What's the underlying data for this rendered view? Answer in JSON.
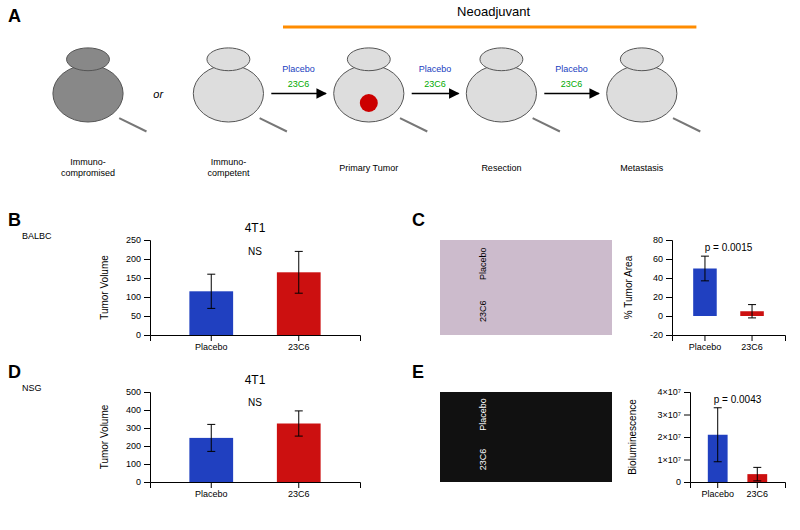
{
  "chart_data": [
    {
      "type": "diagram",
      "label": "A",
      "title": "Neoadjuvant",
      "stages": [
        "Immuno-\ncompromised",
        "Immuno-\ncompetent",
        "Primary Tumor",
        "Resection",
        "Metastasis"
      ],
      "annotations": [
        "or"
      ],
      "arrow_labels": [
        "Placebo",
        "23C6"
      ],
      "colors": [
        "#2040C0",
        "#00AA00"
      ]
    },
    {
      "type": "bar",
      "label": "B",
      "title": "4T1",
      "subtitle": "BALBC",
      "categories": [
        "Placebo",
        "23C6"
      ],
      "values": [
        115,
        165
      ],
      "errors": [
        45,
        55
      ],
      "colors": [
        "#2040C0",
        "#CC1010"
      ],
      "ylabel": "Tumor Volume",
      "ylim": [
        0,
        250
      ],
      "yticks": [
        0,
        50,
        100,
        150,
        200,
        250
      ],
      "annotations": [
        "NS"
      ]
    },
    {
      "type": "bar",
      "label": "C",
      "categories": [
        "Placebo",
        "23C6"
      ],
      "values": [
        50,
        5
      ],
      "errors": [
        13,
        7
      ],
      "colors": [
        "#2040C0",
        "#CC1010"
      ],
      "ylabel": "% Tumor Area",
      "ylim": [
        -20,
        80
      ],
      "yticks": [
        -20,
        0,
        20,
        40,
        60,
        80
      ],
      "annotations": [
        "p = 0.0015"
      ],
      "image_labels": [
        "Placebo",
        "23C6"
      ]
    },
    {
      "type": "bar",
      "label": "D",
      "title": "4T1",
      "subtitle": "NSG",
      "categories": [
        "Placebo",
        "23C6"
      ],
      "values": [
        245,
        325
      ],
      "errors": [
        75,
        70
      ],
      "colors": [
        "#2040C0",
        "#CC1010"
      ],
      "ylabel": "Tumor Volume",
      "ylim": [
        0,
        500
      ],
      "yticks": [
        0,
        100,
        200,
        300,
        400,
        500
      ],
      "annotations": [
        "NS"
      ]
    },
    {
      "type": "bar",
      "label": "E",
      "categories": [
        "Placebo",
        "23C6"
      ],
      "values": [
        21000000,
        3500000
      ],
      "errors": [
        12000000,
        3000000
      ],
      "colors": [
        "#2040C0",
        "#CC1010"
      ],
      "ylabel": "Bioluminescence",
      "ylim": [
        0,
        40000000
      ],
      "yticks": [
        0,
        {
          "value": 10000000,
          "label": "1×10⁷"
        },
        {
          "value": 20000000,
          "label": "2×10⁷"
        },
        {
          "value": 30000000,
          "label": "3×10⁷"
        },
        {
          "value": 40000000,
          "label": "4×10⁷"
        }
      ],
      "annotations": [
        "p = 0.0043"
      ],
      "image_labels": [
        "Placebo",
        "23C6"
      ]
    }
  ]
}
